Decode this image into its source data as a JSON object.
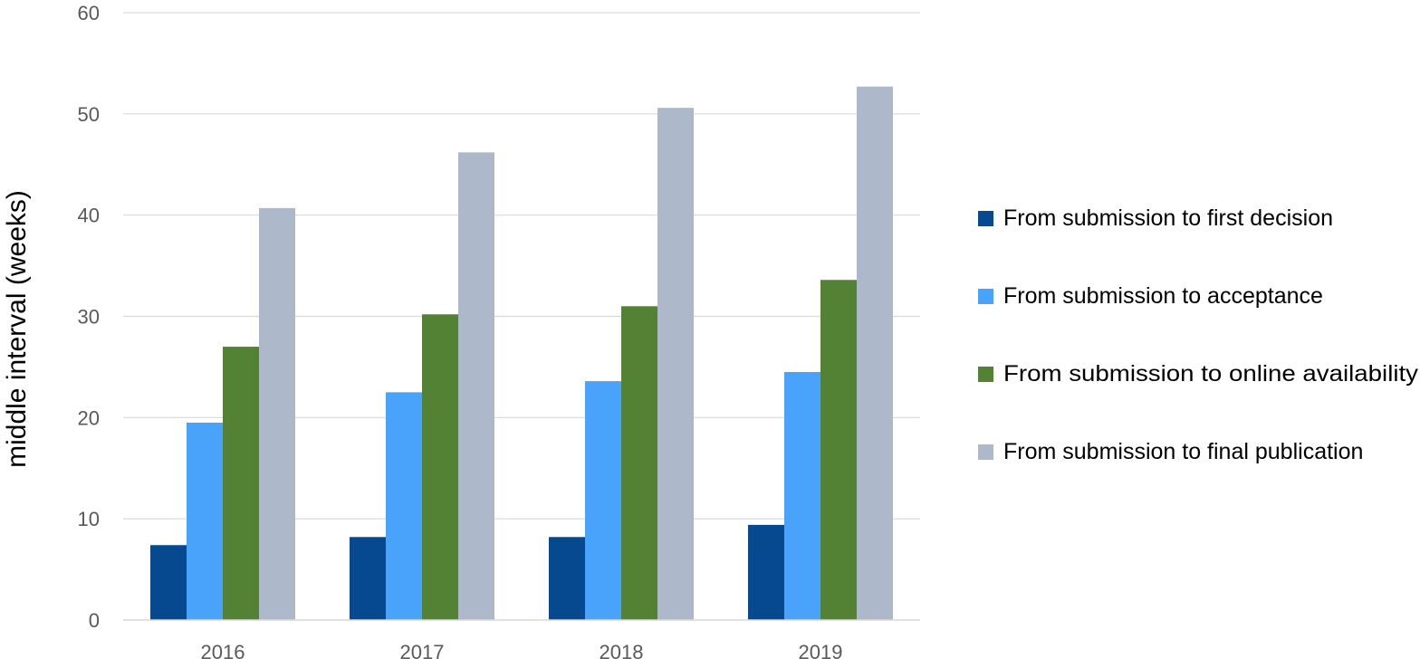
{
  "chart_data": {
    "type": "bar",
    "title": "",
    "xlabel": "",
    "ylabel": "middle interval (weeks)",
    "categories": [
      "2016",
      "2017",
      "2018",
      "2019"
    ],
    "series": [
      {
        "name": "From submission to first decision",
        "color": "#06498F",
        "values": [
          7.4,
          8.2,
          8.2,
          9.4
        ]
      },
      {
        "name": "From submission to acceptance",
        "color": "#4AA3FB",
        "values": [
          19.5,
          22.5,
          23.6,
          24.5
        ]
      },
      {
        "name": "From submission to online availability",
        "color": "#548235",
        "values": [
          27.0,
          30.2,
          31.0,
          33.6
        ]
      },
      {
        "name": "From submission to final publication",
        "color": "#ADB9CA",
        "values": [
          40.7,
          46.2,
          50.6,
          52.7
        ]
      }
    ],
    "yticks": [
      0,
      10,
      20,
      30,
      40,
      50,
      60
    ],
    "ylim": [
      0,
      60
    ],
    "grid": true,
    "gridColor": "#D9D9D9",
    "legend": "right"
  }
}
